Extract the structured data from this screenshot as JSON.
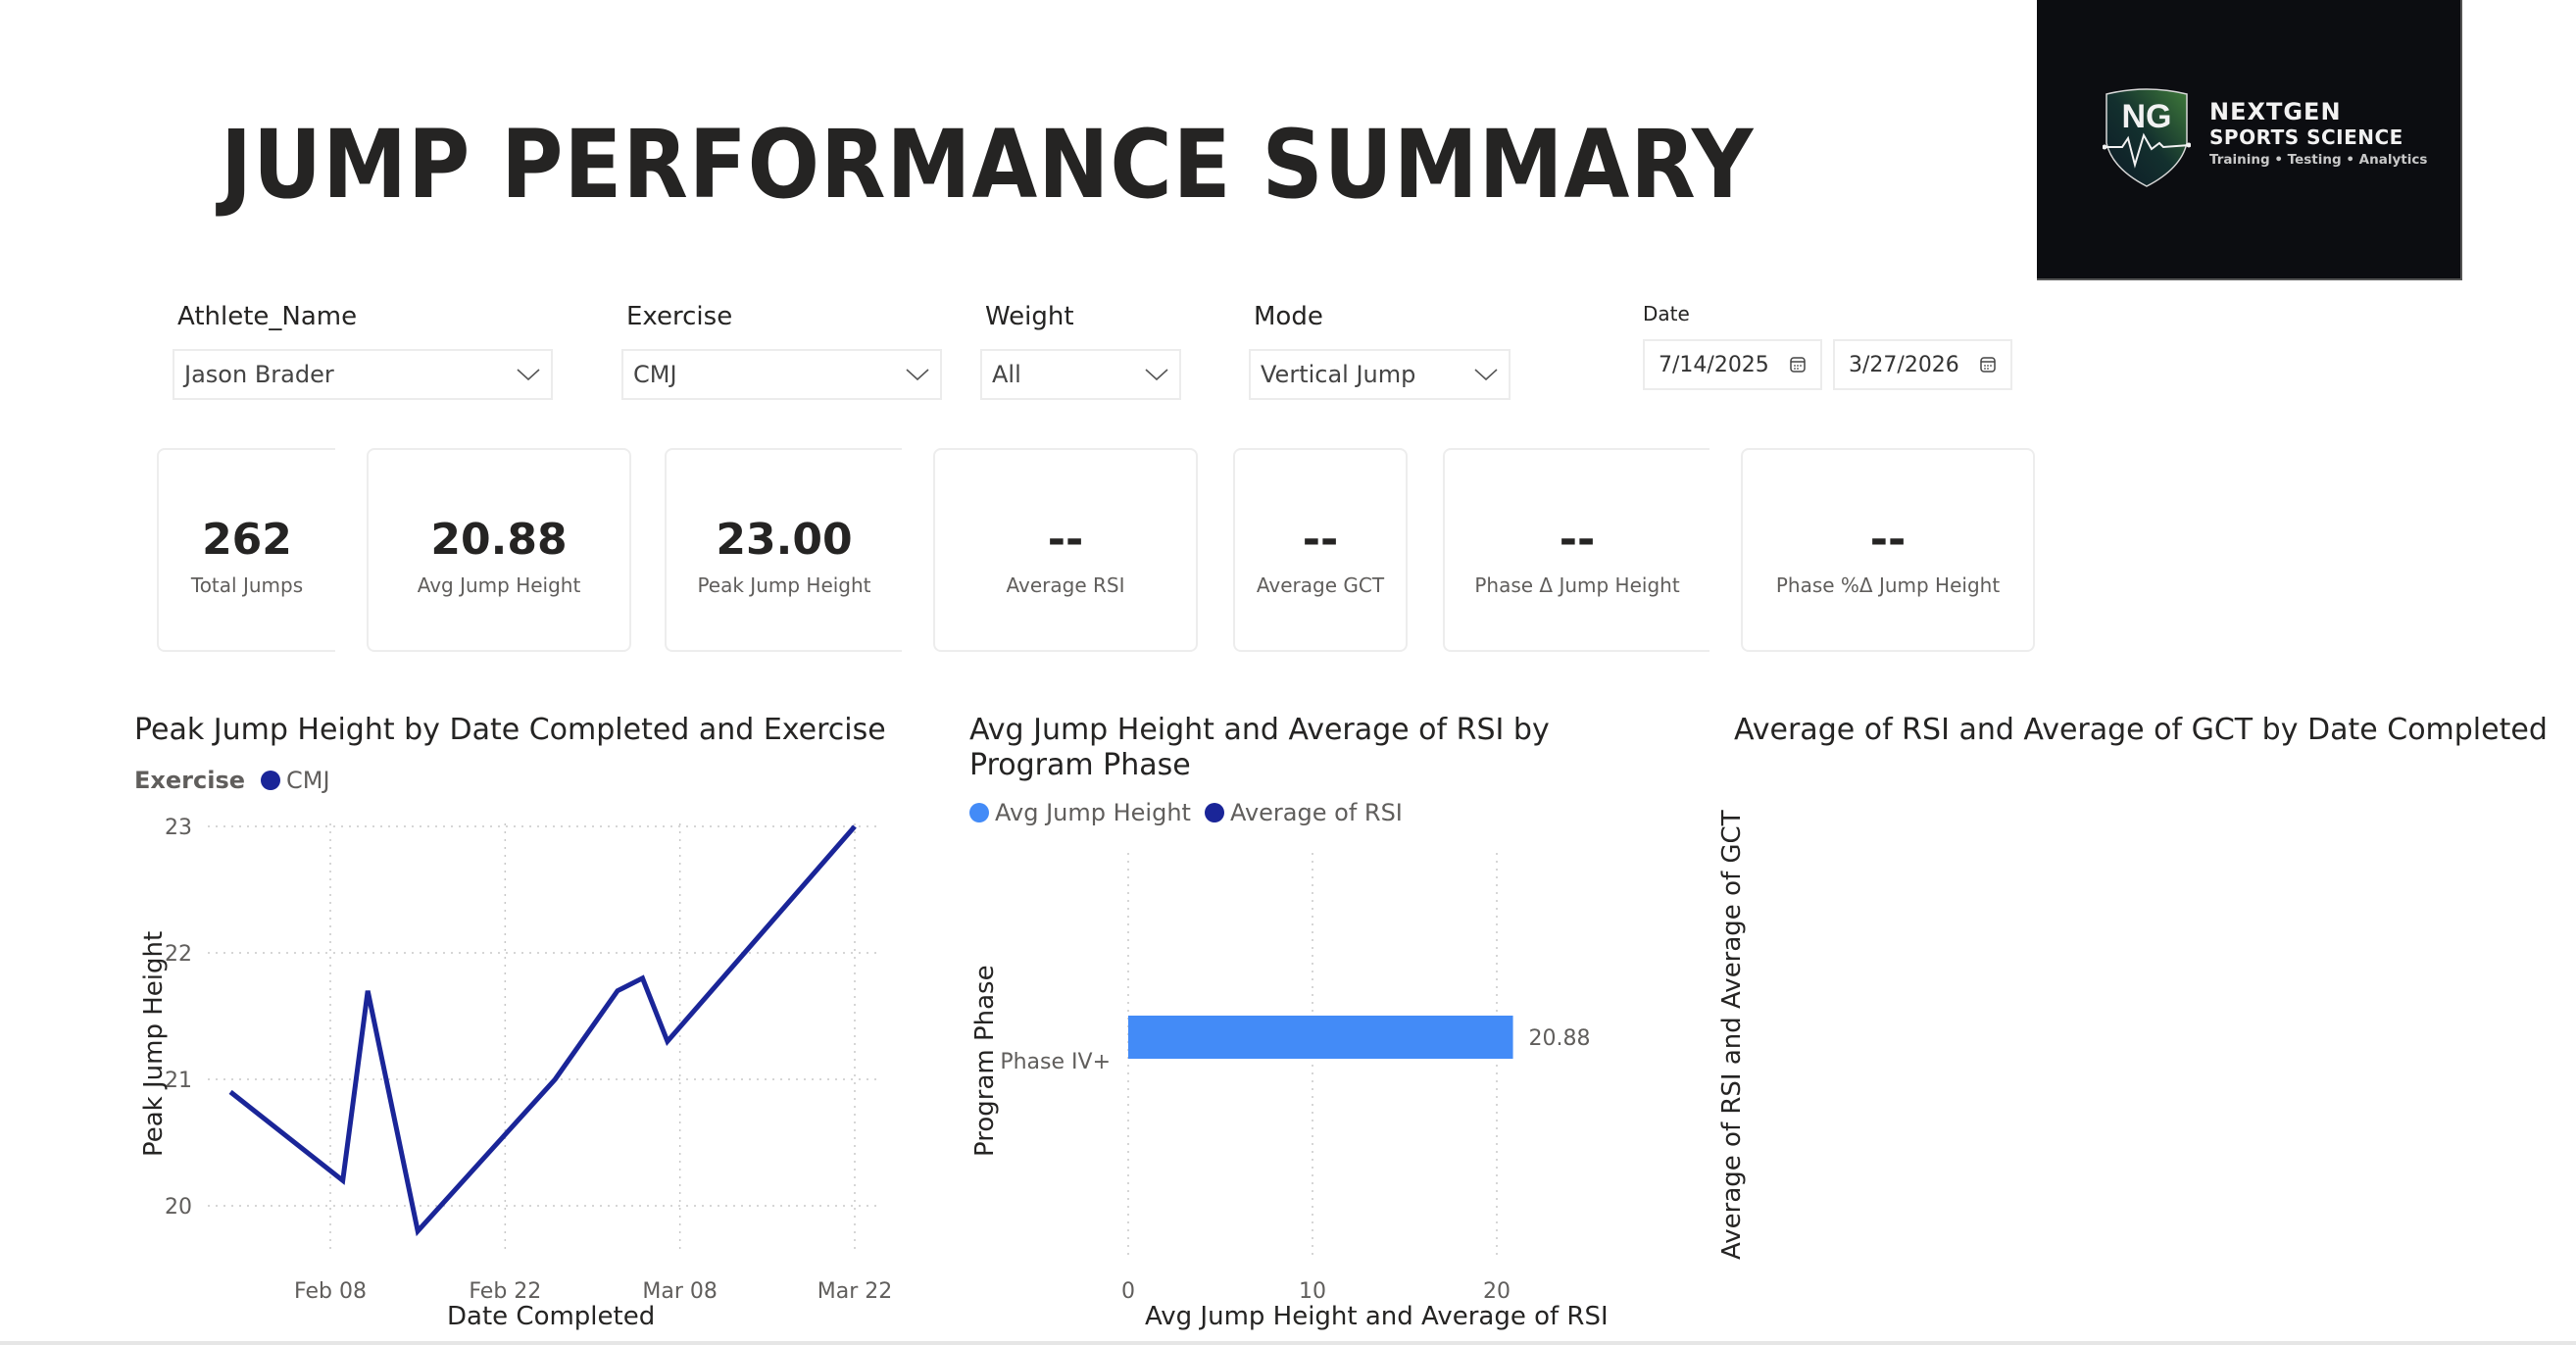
{
  "header": {
    "title": "JUMP PERFORMANCE SUMMARY",
    "logo": {
      "initials": "NG",
      "name": "NEXTGEN",
      "subtitle": "SPORTS SCIENCE",
      "tagline": "Training • Testing • Analytics",
      "background": "#0c0d11"
    }
  },
  "filters": {
    "athlete": {
      "label": "Athlete_Name",
      "value": "Jason Brader"
    },
    "exercise": {
      "label": "Exercise",
      "value": "CMJ"
    },
    "weight": {
      "label": "Weight",
      "value": "All"
    },
    "mode": {
      "label": "Mode",
      "value": "Vertical Jump"
    },
    "date": {
      "label": "Date",
      "start": "7/14/2025",
      "end": "3/27/2026"
    }
  },
  "kpis": [
    {
      "value": "262",
      "label": "Total Jumps"
    },
    {
      "value": "20.88",
      "label": "Avg Jump Height"
    },
    {
      "value": "23.00",
      "label": "Peak Jump Height"
    },
    {
      "value": "--",
      "label": "Average RSI"
    },
    {
      "value": "--",
      "label": "Average GCT"
    },
    {
      "value": "--",
      "label": "Phase Δ Jump Height"
    },
    {
      "value": "--",
      "label": "Phase %Δ Jump Height"
    }
  ],
  "colors": {
    "line": "#1a2598",
    "bar_avg_jump": "#438bf7",
    "rsi": "#1a2598",
    "grid": "#c8c8c8"
  },
  "chart_data": [
    {
      "type": "line",
      "title": "Peak Jump Height by Date Completed and Exercise",
      "legend_title": "Exercise",
      "legend": [
        "CMJ"
      ],
      "xlabel": "Date Completed",
      "ylabel": "Peak Jump Height",
      "x_ticks": [
        "Feb 08",
        "Feb 22",
        "Mar 08",
        "Mar 22"
      ],
      "y_ticks": [
        20,
        21,
        22,
        23
      ],
      "ylim": [
        19.6,
        23
      ],
      "grid": true,
      "series": [
        {
          "name": "CMJ",
          "x": [
            "Jan 31",
            "Feb 09",
            "Feb 11",
            "Feb 15",
            "Feb 26",
            "Mar 03",
            "Mar 05",
            "Mar 07",
            "Mar 22"
          ],
          "x_day_offset": [
            -8,
            1,
            3,
            7,
            18,
            23,
            25,
            27,
            42
          ],
          "values": [
            20.9,
            20.2,
            21.7,
            19.8,
            21.0,
            21.7,
            21.8,
            21.3,
            23.0
          ]
        }
      ]
    },
    {
      "type": "bar",
      "orientation": "horizontal",
      "title": "Avg Jump Height and Average of RSI by Program Phase",
      "title_lines": [
        "Avg Jump Height and Average of RSI by",
        "Program Phase"
      ],
      "legend": [
        "Avg Jump Height",
        "Average of RSI"
      ],
      "categories": [
        "Phase IV+"
      ],
      "series": [
        {
          "name": "Avg Jump Height",
          "values": [
            20.88
          ]
        },
        {
          "name": "Average of RSI",
          "values": [
            null
          ]
        }
      ],
      "data_labels": [
        "20.88"
      ],
      "xlabel": "Avg Jump Height and Average of RSI",
      "ylabel": "Program Phase",
      "x_ticks": [
        0,
        10,
        20
      ],
      "xlim": [
        0,
        22
      ]
    },
    {
      "type": "line",
      "title": "Average of RSI and Average of GCT by Date Completed",
      "ylabel": "Average of RSI and Average of GCT",
      "series": []
    }
  ]
}
